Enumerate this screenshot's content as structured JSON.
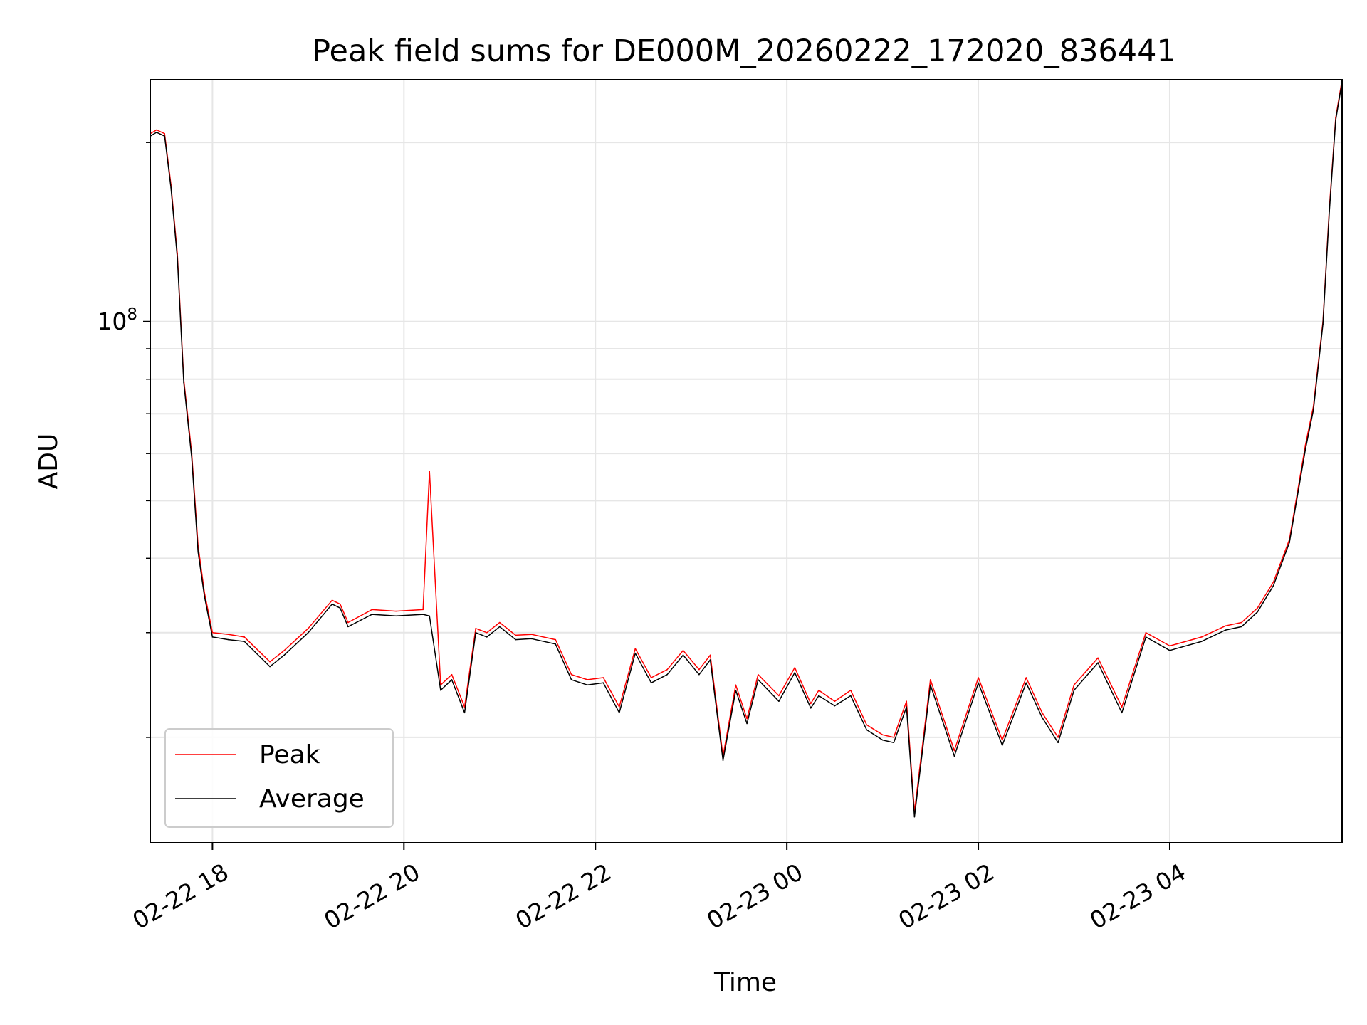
{
  "chart_data": {
    "type": "line",
    "title": "Peak field sums for DE000M_20260222_172020_836441",
    "xlabel": "Time",
    "ylabel": "ADU",
    "y_scale": "log",
    "ylim": [
      13300000.0,
      255000000.0
    ],
    "xlim": [
      "2026-02-22 17:21",
      "2026-02-23 05:48"
    ],
    "grid": true,
    "legend_position": "lower-left",
    "x_ticks": [
      "02-22 18",
      "02-22 20",
      "02-22 22",
      "02-23 00",
      "02-23 02",
      "02-23 04"
    ],
    "x_tick_times": [
      "2026-02-22 18:00",
      "2026-02-22 20:00",
      "2026-02-22 22:00",
      "2026-02-23 00:00",
      "2026-02-23 02:00",
      "2026-02-23 04:00"
    ],
    "y_major_tick_label": "10^8",
    "x": [
      "2026-02-22 17:21",
      "2026-02-22 17:25",
      "2026-02-22 17:30",
      "2026-02-22 17:34",
      "2026-02-22 17:38",
      "2026-02-22 17:42",
      "2026-02-22 17:47",
      "2026-02-22 17:51",
      "2026-02-22 17:55",
      "2026-02-22 18:00",
      "2026-02-22 18:10",
      "2026-02-22 18:20",
      "2026-02-22 18:36",
      "2026-02-22 18:45",
      "2026-02-22 19:00",
      "2026-02-22 19:15",
      "2026-02-22 19:20",
      "2026-02-22 19:25",
      "2026-02-22 19:40",
      "2026-02-22 19:55",
      "2026-02-22 20:12",
      "2026-02-22 20:16",
      "2026-02-22 20:23",
      "2026-02-22 20:30",
      "2026-02-22 20:38",
      "2026-02-22 20:45",
      "2026-02-22 20:52",
      "2026-02-22 21:00",
      "2026-02-22 21:10",
      "2026-02-22 21:20",
      "2026-02-22 21:35",
      "2026-02-22 21:45",
      "2026-02-22 21:55",
      "2026-02-22 22:05",
      "2026-02-22 22:15",
      "2026-02-22 22:25",
      "2026-02-22 22:35",
      "2026-02-22 22:45",
      "2026-02-22 22:55",
      "2026-02-22 23:05",
      "2026-02-22 23:12",
      "2026-02-22 23:20",
      "2026-02-22 23:28",
      "2026-02-22 23:35",
      "2026-02-22 23:42",
      "2026-02-22 23:55",
      "2026-02-23 00:05",
      "2026-02-23 00:15",
      "2026-02-23 00:20",
      "2026-02-23 00:30",
      "2026-02-23 00:40",
      "2026-02-23 00:50",
      "2026-02-23 01:00",
      "2026-02-23 01:07",
      "2026-02-23 01:15",
      "2026-02-23 01:20",
      "2026-02-23 01:30",
      "2026-02-23 01:45",
      "2026-02-23 02:00",
      "2026-02-23 02:15",
      "2026-02-23 02:30",
      "2026-02-23 02:40",
      "2026-02-23 02:50",
      "2026-02-23 03:00",
      "2026-02-23 03:15",
      "2026-02-23 03:30",
      "2026-02-23 03:45",
      "2026-02-23 04:00",
      "2026-02-23 04:20",
      "2026-02-23 04:35",
      "2026-02-23 04:45",
      "2026-02-23 04:55",
      "2026-02-23 05:05",
      "2026-02-23 05:15",
      "2026-02-23 05:25",
      "2026-02-23 05:30",
      "2026-02-23 05:36",
      "2026-02-23 05:40",
      "2026-02-23 05:44",
      "2026-02-23 05:48"
    ],
    "series": [
      {
        "name": "Peak",
        "color": "#ff0000",
        "values": [
          207000000.0,
          210000000.0,
          207000000.0,
          170000000.0,
          130000000.0,
          80000000.0,
          60000000.0,
          42000000.0,
          35000000.0,
          30000000.0,
          29800000.0,
          29500000.0,
          26800000.0,
          28000000.0,
          30500000.0,
          34000000.0,
          33500000.0,
          31200000.0,
          32800000.0,
          32600000.0,
          32800000.0,
          56000000.0,
          24500000.0,
          25500000.0,
          22500000.0,
          30500000.0,
          30000000.0,
          31200000.0,
          29700000.0,
          29800000.0,
          29200000.0,
          25500000.0,
          25000000.0,
          25200000.0,
          22500000.0,
          28200000.0,
          25200000.0,
          26000000.0,
          28000000.0,
          26000000.0,
          27500000.0,
          18600000.0,
          24500000.0,
          21500000.0,
          25500000.0,
          23500000.0,
          26200000.0,
          22800000.0,
          24000000.0,
          23000000.0,
          24000000.0,
          21000000.0,
          20200000.0,
          20000000.0,
          23000000.0,
          15000000.0,
          25000000.0,
          19000000.0,
          25200000.0,
          19800000.0,
          25200000.0,
          22000000.0,
          20000000.0,
          24500000.0,
          27200000.0,
          22500000.0,
          30000000.0,
          28500000.0,
          29500000.0,
          30800000.0,
          31200000.0,
          33000000.0,
          36500000.0,
          43000000.0,
          62000000.0,
          72000000.0,
          100000000.0,
          155000000.0,
          220000000.0,
          255000000.0
        ]
      },
      {
        "name": "Average",
        "color": "#000000",
        "values": [
          205000000.0,
          208000000.0,
          205000000.0,
          168000000.0,
          128000000.0,
          79000000.0,
          59000000.0,
          41000000.0,
          34500000.0,
          29500000.0,
          29200000.0,
          29000000.0,
          26300000.0,
          27500000.0,
          30000000.0,
          33500000.0,
          33000000.0,
          30700000.0,
          32200000.0,
          32000000.0,
          32200000.0,
          32000000.0,
          24000000.0,
          25000000.0,
          22000000.0,
          30000000.0,
          29500000.0,
          30700000.0,
          29200000.0,
          29300000.0,
          28700000.0,
          25000000.0,
          24500000.0,
          24700000.0,
          22000000.0,
          27700000.0,
          24700000.0,
          25500000.0,
          27500000.0,
          25500000.0,
          27000000.0,
          18300000.0,
          24000000.0,
          21100000.0,
          25000000.0,
          23000000.0,
          25700000.0,
          22400000.0,
          23500000.0,
          22600000.0,
          23500000.0,
          20600000.0,
          19800000.0,
          19600000.0,
          22500000.0,
          14700000.0,
          24500000.0,
          18600000.0,
          24700000.0,
          19400000.0,
          24700000.0,
          21600000.0,
          19600000.0,
          24000000.0,
          26700000.0,
          22000000.0,
          29500000.0,
          28000000.0,
          29000000.0,
          30300000.0,
          30700000.0,
          32500000.0,
          36000000.0,
          42500000.0,
          61000000.0,
          71000000.0,
          99000000.0,
          153000000.0,
          218000000.0,
          253000000.0
        ]
      }
    ]
  }
}
